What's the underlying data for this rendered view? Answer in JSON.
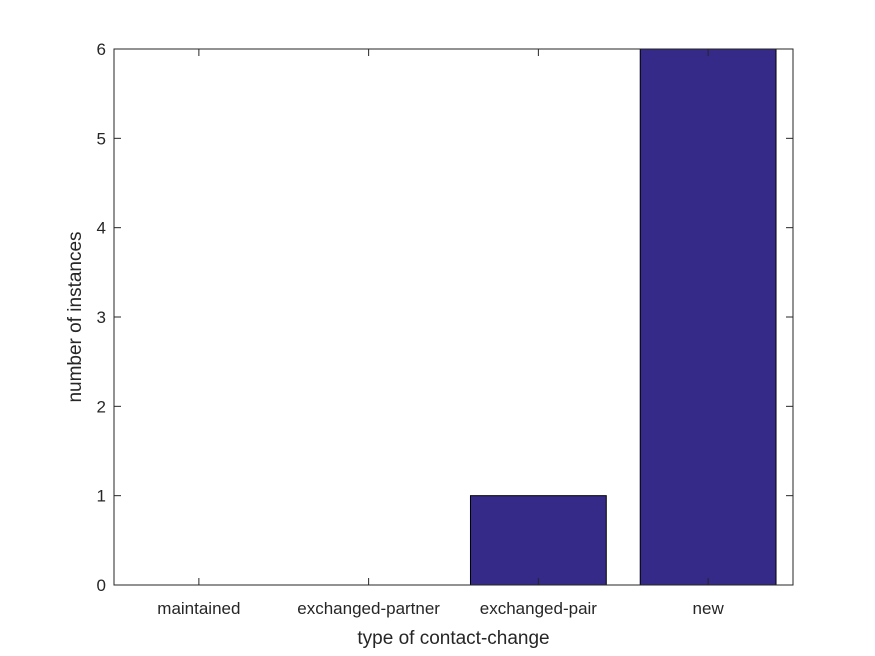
{
  "chart_data": {
    "type": "bar",
    "categories": [
      "maintained",
      "exchanged-partner",
      "exchanged-pair",
      "new"
    ],
    "values": [
      0,
      0,
      1,
      6
    ],
    "title": "",
    "xlabel": "type of contact-change",
    "ylabel": "number of instances",
    "ylim": [
      0,
      6
    ],
    "yticks": [
      "0",
      "1",
      "2",
      "3",
      "4",
      "5",
      "6"
    ],
    "grid": false,
    "bar_color": "#352a87",
    "edge_color": "#000000"
  }
}
